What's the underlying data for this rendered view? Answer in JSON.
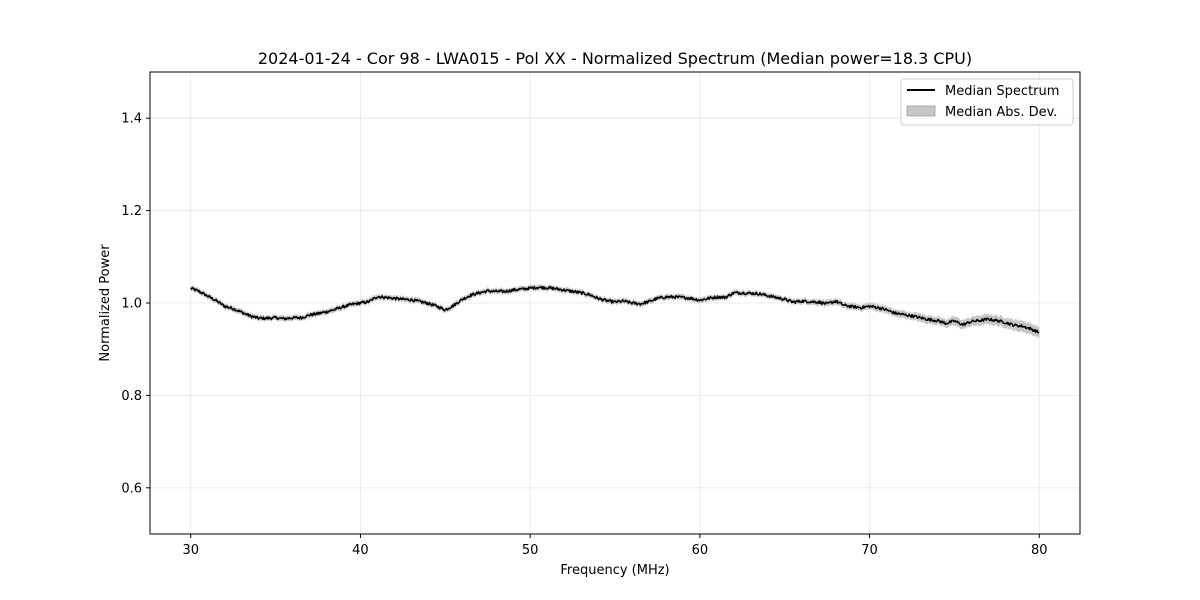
{
  "chart_data": {
    "type": "line",
    "title": "2024-01-24 - Cor 98 - LWA015 - Pol XX - Normalized Spectrum (Median power=18.3 CPU)",
    "xlabel": "Frequency (MHz)",
    "ylabel": "Normalized Power",
    "xlim": [
      27.6,
      82.4
    ],
    "ylim": [
      0.5,
      1.5
    ],
    "xticks": [
      30,
      40,
      50,
      60,
      70,
      80
    ],
    "yticks": [
      0.6,
      0.8,
      1.0,
      1.2,
      1.4
    ],
    "xtick_labels": [
      "30",
      "40",
      "50",
      "60",
      "70",
      "80"
    ],
    "ytick_labels": [
      "0.6",
      "0.8",
      "1.0",
      "1.2",
      "1.4"
    ],
    "grid": true,
    "legend_position": "top-right",
    "series": [
      {
        "name": "Median Spectrum",
        "color": "#000000",
        "x": [
          30,
          30.5,
          31,
          31.5,
          32,
          32.5,
          33,
          33.5,
          34,
          34.5,
          35,
          35.5,
          36,
          36.5,
          37,
          37.5,
          38,
          38.5,
          39,
          39.5,
          40,
          40.5,
          41,
          41.5,
          42,
          42.5,
          43,
          43.5,
          44,
          44.5,
          45,
          45.5,
          46,
          46.5,
          47,
          47.5,
          48,
          48.5,
          49,
          49.5,
          50,
          50.5,
          51,
          51.5,
          52,
          52.5,
          53,
          53.5,
          54,
          54.5,
          55,
          55.5,
          56,
          56.5,
          57,
          57.5,
          58,
          58.5,
          59,
          59.5,
          60,
          60.5,
          61,
          61.5,
          62,
          62.5,
          63,
          63.5,
          64,
          64.5,
          65,
          65.5,
          66,
          66.5,
          67,
          67.5,
          68,
          68.5,
          69,
          69.5,
          70,
          70.5,
          71,
          71.5,
          72,
          72.5,
          73,
          73.5,
          74,
          74.5,
          75,
          75.5,
          76,
          76.5,
          77,
          77.5,
          78,
          78.5,
          79,
          79.5,
          80
        ],
        "values": [
          1.032,
          1.025,
          1.015,
          1.005,
          0.993,
          0.988,
          0.98,
          0.972,
          0.967,
          0.967,
          0.968,
          0.966,
          0.968,
          0.968,
          0.974,
          0.977,
          0.981,
          0.986,
          0.992,
          0.997,
          1.0,
          1.003,
          1.014,
          1.012,
          1.01,
          1.008,
          1.007,
          1.003,
          0.999,
          0.993,
          0.985,
          0.995,
          1.008,
          1.017,
          1.022,
          1.026,
          1.025,
          1.025,
          1.028,
          1.03,
          1.032,
          1.034,
          1.033,
          1.031,
          1.028,
          1.025,
          1.022,
          1.018,
          1.01,
          1.005,
          1.002,
          1.004,
          1.0,
          0.998,
          1.003,
          1.01,
          1.013,
          1.013,
          1.012,
          1.01,
          1.006,
          1.01,
          1.013,
          1.012,
          1.022,
          1.022,
          1.021,
          1.02,
          1.016,
          1.012,
          1.008,
          1.002,
          1.004,
          1.003,
          1.002,
          0.998,
          1.004,
          0.995,
          0.992,
          0.99,
          0.993,
          0.99,
          0.985,
          0.978,
          0.975,
          0.972,
          0.968,
          0.964,
          0.962,
          0.956,
          0.961,
          0.953,
          0.96,
          0.962,
          0.965,
          0.962,
          0.958,
          0.952,
          0.95,
          0.944,
          0.936
        ]
      },
      {
        "name": "Median Abs. Dev.",
        "color": "#c6c6c6",
        "band_width": [
          0.006,
          0.006,
          0.006,
          0.006,
          0.006,
          0.006,
          0.006,
          0.006,
          0.006,
          0.006,
          0.006,
          0.006,
          0.006,
          0.006,
          0.006,
          0.006,
          0.006,
          0.006,
          0.006,
          0.006,
          0.006,
          0.006,
          0.006,
          0.006,
          0.006,
          0.006,
          0.006,
          0.006,
          0.006,
          0.006,
          0.006,
          0.006,
          0.006,
          0.006,
          0.006,
          0.006,
          0.006,
          0.006,
          0.006,
          0.006,
          0.006,
          0.006,
          0.006,
          0.006,
          0.006,
          0.006,
          0.006,
          0.006,
          0.006,
          0.006,
          0.006,
          0.006,
          0.006,
          0.006,
          0.006,
          0.006,
          0.006,
          0.006,
          0.006,
          0.006,
          0.006,
          0.006,
          0.006,
          0.006,
          0.006,
          0.006,
          0.006,
          0.006,
          0.006,
          0.006,
          0.006,
          0.006,
          0.006,
          0.006,
          0.007,
          0.007,
          0.007,
          0.007,
          0.007,
          0.007,
          0.007,
          0.008,
          0.008,
          0.008,
          0.008,
          0.008,
          0.009,
          0.009,
          0.009,
          0.009,
          0.01,
          0.01,
          0.01,
          0.011,
          0.011,
          0.011,
          0.011,
          0.012,
          0.012,
          0.012,
          0.012
        ]
      }
    ]
  }
}
